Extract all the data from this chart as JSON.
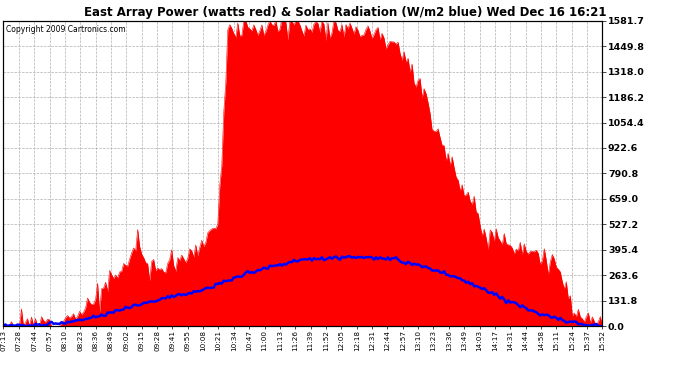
{
  "title": "East Array Power (watts red) & Solar Radiation (W/m2 blue) Wed Dec 16 16:21",
  "copyright": "Copyright 2009 Cartronics.com",
  "y_ticks": [
    0.0,
    131.8,
    263.6,
    395.4,
    527.2,
    659.0,
    790.8,
    922.6,
    1054.4,
    1186.2,
    1318.0,
    1449.8,
    1581.7
  ],
  "y_max": 1581.7,
  "y_min": 0.0,
  "bg_color": "#ffffff",
  "plot_bg_color": "#ffffff",
  "grid_color": "#b0b0b0",
  "red_color": "#ff0000",
  "blue_color": "#0000ff",
  "x_labels": [
    "07:13",
    "07:28",
    "07:44",
    "07:57",
    "08:10",
    "08:23",
    "08:36",
    "08:49",
    "09:02",
    "09:15",
    "09:28",
    "09:41",
    "09:55",
    "10:08",
    "10:21",
    "10:34",
    "10:47",
    "11:00",
    "11:13",
    "11:26",
    "11:39",
    "11:52",
    "12:05",
    "12:18",
    "12:31",
    "12:44",
    "12:57",
    "13:10",
    "13:23",
    "13:36",
    "13:49",
    "14:03",
    "14:17",
    "14:31",
    "14:44",
    "14:58",
    "15:11",
    "15:24",
    "15:37",
    "15:52"
  ],
  "power_key_t": [
    0.0,
    0.02,
    0.05,
    0.08,
    0.1,
    0.13,
    0.15,
    0.17,
    0.19,
    0.21,
    0.225,
    0.24,
    0.26,
    0.28,
    0.3,
    0.32,
    0.345,
    0.36,
    0.375,
    0.39,
    0.42,
    0.47,
    0.52,
    0.57,
    0.6,
    0.63,
    0.655,
    0.67,
    0.7,
    0.72,
    0.74,
    0.77,
    0.8,
    0.84,
    0.875,
    0.9,
    0.925,
    0.95,
    0.97,
    1.0
  ],
  "power_key_v": [
    0,
    2,
    8,
    20,
    40,
    80,
    130,
    200,
    270,
    320,
    480,
    280,
    310,
    340,
    360,
    390,
    500,
    560,
    1520,
    1540,
    1550,
    1560,
    1555,
    1550,
    1540,
    1510,
    1480,
    1400,
    1200,
    1050,
    900,
    700,
    500,
    440,
    400,
    360,
    300,
    100,
    50,
    5
  ],
  "solar_key_t": [
    0.0,
    0.04,
    0.08,
    0.12,
    0.16,
    0.2,
    0.24,
    0.28,
    0.32,
    0.36,
    0.4,
    0.45,
    0.5,
    0.55,
    0.58,
    0.62,
    0.65,
    0.7,
    0.74,
    0.78,
    0.82,
    0.86,
    0.9,
    0.94,
    0.97,
    1.0
  ],
  "solar_key_v": [
    0,
    3,
    10,
    25,
    50,
    90,
    125,
    155,
    175,
    215,
    270,
    310,
    345,
    355,
    358,
    355,
    345,
    310,
    270,
    220,
    165,
    110,
    60,
    25,
    10,
    3
  ],
  "noise_power": 30,
  "noise_solar": 5,
  "seed": 12
}
